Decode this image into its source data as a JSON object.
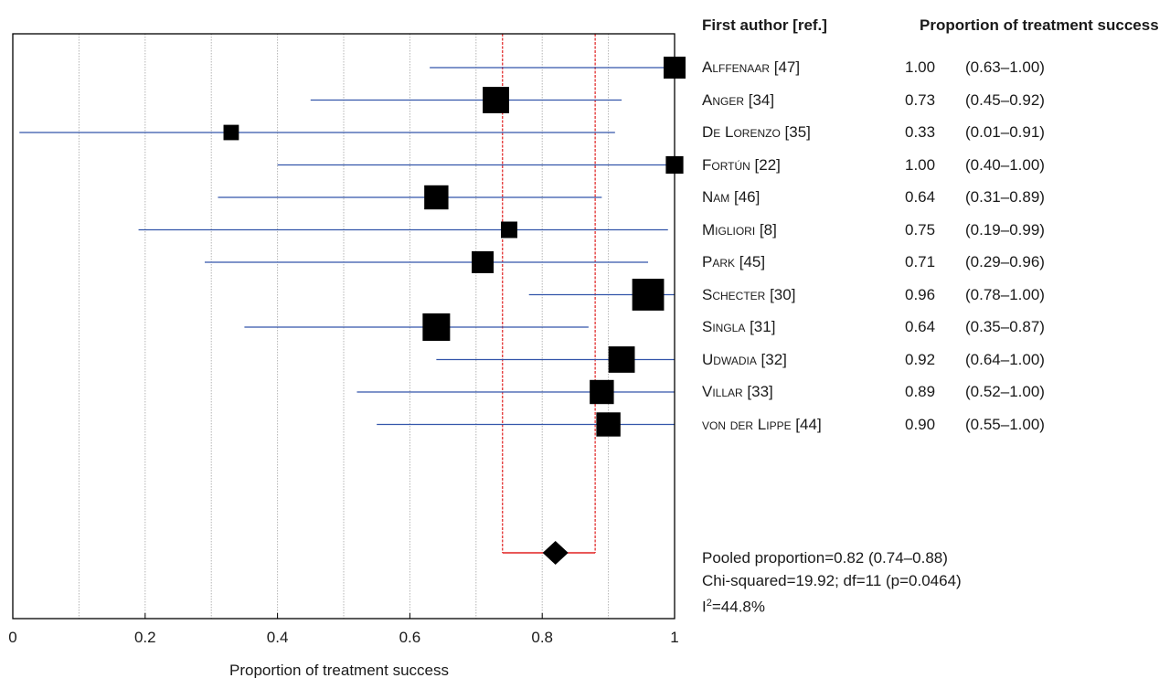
{
  "chart_data": {
    "type": "forest",
    "xlabel": "Proportion of treatment success",
    "xlim": [
      0,
      1
    ],
    "xticks": [
      0,
      0.2,
      0.4,
      0.6,
      0.8,
      1
    ],
    "xtick_labels": [
      "0",
      "0.2",
      "0.4",
      "0.6",
      "0.8",
      "1"
    ],
    "grid_x": [
      0.1,
      0.2,
      0.3,
      0.4,
      0.5,
      0.6,
      0.7,
      0.8,
      0.9
    ],
    "columns": {
      "study_header": "First author [ref.]",
      "estimate_header": "Proportion of treatment success"
    },
    "studies": [
      {
        "author": "Alffenaar [47]",
        "estimate": 1.0,
        "ci_low": 0.63,
        "ci_high": 1.0,
        "estimate_text": "1.00",
        "ci_text": "(0.63–1.00)",
        "weight": 1.0
      },
      {
        "author": "Anger [34]",
        "estimate": 0.73,
        "ci_low": 0.45,
        "ci_high": 0.92,
        "estimate_text": "0.73",
        "ci_text": "(0.45–0.92)",
        "weight": 1.2
      },
      {
        "author": "De Lorenzo [35]",
        "estimate": 0.33,
        "ci_low": 0.01,
        "ci_high": 0.91,
        "estimate_text": "0.33",
        "ci_text": "(0.01–0.91)",
        "weight": 0.7
      },
      {
        "author": "Fortún [22]",
        "estimate": 1.0,
        "ci_low": 0.4,
        "ci_high": 1.0,
        "estimate_text": "1.00",
        "ci_text": "(0.40–1.00)",
        "weight": 0.8
      },
      {
        "author": "Nam [46]",
        "estimate": 0.64,
        "ci_low": 0.31,
        "ci_high": 0.89,
        "estimate_text": "0.64",
        "ci_text": "(0.31–0.89)",
        "weight": 1.1
      },
      {
        "author": "Migliori [8]",
        "estimate": 0.75,
        "ci_low": 0.19,
        "ci_high": 0.99,
        "estimate_text": "0.75",
        "ci_text": "(0.19–0.99)",
        "weight": 0.75
      },
      {
        "author": "Park [45]",
        "estimate": 0.71,
        "ci_low": 0.29,
        "ci_high": 0.96,
        "estimate_text": "0.71",
        "ci_text": "(0.29–0.96)",
        "weight": 1.0
      },
      {
        "author": "Schecter [30]",
        "estimate": 0.96,
        "ci_low": 0.78,
        "ci_high": 1.0,
        "estimate_text": "0.96",
        "ci_text": "(0.78–1.00)",
        "weight": 1.45
      },
      {
        "author": "Singla [31]",
        "estimate": 0.64,
        "ci_low": 0.35,
        "ci_high": 0.87,
        "estimate_text": "0.64",
        "ci_text": "(0.35–0.87)",
        "weight": 1.25
      },
      {
        "author": "Udwadia [32]",
        "estimate": 0.92,
        "ci_low": 0.64,
        "ci_high": 1.0,
        "estimate_text": "0.92",
        "ci_text": "(0.64–1.00)",
        "weight": 1.2
      },
      {
        "author": "Villar [33]",
        "estimate": 0.89,
        "ci_low": 0.52,
        "ci_high": 1.0,
        "estimate_text": "0.89",
        "ci_text": "(0.52–1.00)",
        "weight": 1.1
      },
      {
        "author": "von der Lippe [44]",
        "estimate": 0.9,
        "ci_low": 0.55,
        "ci_high": 1.0,
        "estimate_text": "0.90",
        "ci_text": "(0.55–1.00)",
        "weight": 1.1
      }
    ],
    "pooled": {
      "estimate": 0.82,
      "ci_low": 0.74,
      "ci_high": 0.88
    },
    "stats": {
      "pooled_line": "Pooled proportion=0.82 (0.74–0.88)",
      "chi_line": "Chi-squared=19.92; df=11  (p=0.0464)",
      "i2_prefix": "I",
      "i2_sup": "2",
      "i2_value": "=44.8%"
    },
    "colors": {
      "ci_line": "#3355aa",
      "pooled_ci": "#e02020",
      "marker": "#000000",
      "grid": "#b4b4b4",
      "frame": "#000000"
    }
  }
}
